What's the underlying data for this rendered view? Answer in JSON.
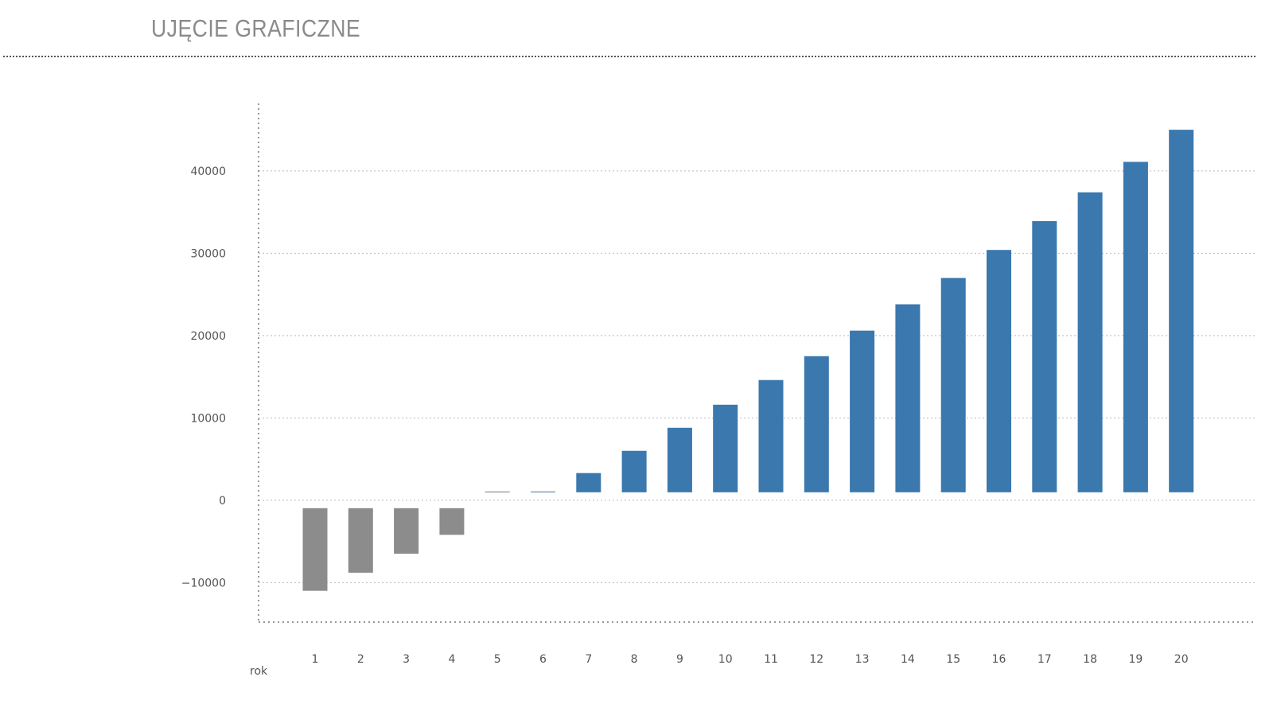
{
  "header": {
    "title": "UJĘCIE GRAFICZNE"
  },
  "colors": {
    "positive": "#3a78ae",
    "negative": "#8c8c8c",
    "grid": "#bbbbbb",
    "axis": "#777777"
  },
  "chart_data": {
    "type": "bar",
    "title": "",
    "xlabel": "rok",
    "ylabel": "",
    "categories": [
      "1",
      "2",
      "3",
      "4",
      "5",
      "6",
      "7",
      "8",
      "9",
      "10",
      "11",
      "12",
      "13",
      "14",
      "15",
      "16",
      "17",
      "18",
      "19",
      "20"
    ],
    "values": [
      -11000,
      -8800,
      -6500,
      -4200,
      150,
      700,
      3300,
      6000,
      8800,
      11600,
      14600,
      17500,
      20600,
      23800,
      27000,
      30400,
      33900,
      37400,
      41100,
      45000
    ],
    "yticks": [
      -10000,
      0,
      10000,
      20000,
      30000,
      40000
    ],
    "ytick_labels": [
      "−10000",
      "0",
      "10000",
      "20000",
      "30000",
      "40000"
    ],
    "ylim": [
      -14800,
      48200
    ],
    "grid": true,
    "legend": false
  }
}
